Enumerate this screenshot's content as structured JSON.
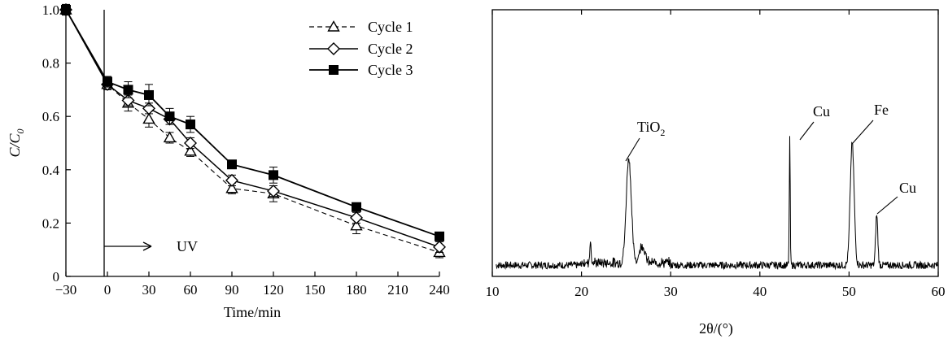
{
  "chart_data": [
    {
      "type": "line",
      "xlabel": "Time/min",
      "ylabel": "C/C",
      "ylabel_sub": "0",
      "xlim": [
        -30,
        240
      ],
      "ylim": [
        0,
        1.0
      ],
      "xticks": [
        -30,
        0,
        30,
        60,
        90,
        120,
        150,
        180,
        210,
        240
      ],
      "xtick_labels": [
        "−30",
        "0",
        "30",
        "60",
        "90",
        "120",
        "150",
        "180",
        "210",
        "240"
      ],
      "yticks": [
        0,
        0.2,
        0.4,
        0.6,
        0.8,
        1.0
      ],
      "ytick_labels": [
        "0",
        "0.2",
        "0.4",
        "0.6",
        "0.8",
        "1.0"
      ],
      "grid": false,
      "legend_position": "top-right",
      "annotations": [
        {
          "text": "UV",
          "x": 0,
          "y": 0.11
        }
      ],
      "x": [
        -30,
        0,
        15,
        30,
        45,
        60,
        90,
        120,
        180,
        240
      ],
      "series": [
        {
          "name": "Cycle 1",
          "marker": "triangle-open",
          "line": "dashed",
          "color": "#000000",
          "values": [
            1.0,
            0.72,
            0.65,
            0.59,
            0.52,
            0.47,
            0.33,
            0.31,
            0.19,
            0.09
          ],
          "errors": [
            0.02,
            0.02,
            0.03,
            0.03,
            0.02,
            0.02,
            0.02,
            0.03,
            0.03,
            0.02
          ]
        },
        {
          "name": "Cycle 2",
          "marker": "diamond-open",
          "line": "solid",
          "color": "#000000",
          "values": [
            1.0,
            0.72,
            0.66,
            0.63,
            0.59,
            0.5,
            0.36,
            0.32,
            0.22,
            0.11
          ],
          "errors": [
            0.02,
            0.02,
            0.02,
            0.02,
            0.02,
            0.02,
            0.02,
            0.02,
            0.02,
            0.02
          ]
        },
        {
          "name": "Cycle 3",
          "marker": "square-filled",
          "line": "solid",
          "color": "#000000",
          "values": [
            1.0,
            0.73,
            0.7,
            0.68,
            0.6,
            0.57,
            0.42,
            0.38,
            0.26,
            0.15
          ],
          "errors": [
            0.01,
            0.02,
            0.03,
            0.04,
            0.03,
            0.03,
            0.01,
            0.03,
            0.01,
            0.01
          ]
        }
      ]
    },
    {
      "type": "line",
      "xlabel": "2θ/(°)",
      "xlim": [
        10,
        60
      ],
      "xticks": [
        10,
        20,
        30,
        40,
        50,
        60
      ],
      "xtick_labels": [
        "10",
        "20",
        "30",
        "40",
        "50",
        "60"
      ],
      "grid": false,
      "color": "#000000",
      "peaks": [
        {
          "label": "TiO",
          "label_sub": "2",
          "x": 25.3
        },
        {
          "label": "Cu",
          "x": 43.3
        },
        {
          "label": "Fe",
          "x": 50.4
        },
        {
          "label": "Cu",
          "x": 53.1
        }
      ]
    }
  ]
}
